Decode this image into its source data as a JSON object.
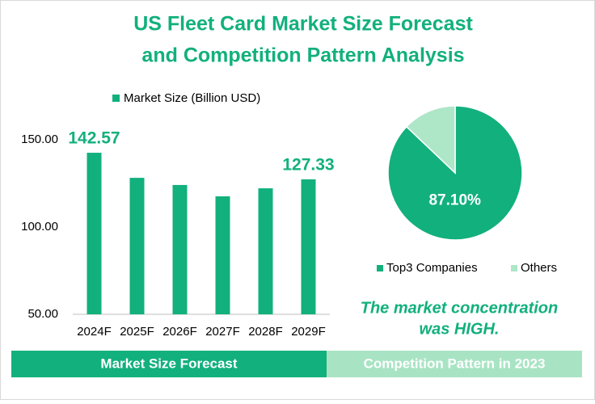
{
  "title": [
    "US Fleet Card Market Size Forecast",
    "and Competition Pattern Analysis"
  ],
  "chart_data": [
    {
      "type": "bar",
      "caption": "Market Size Forecast",
      "categories": [
        "2024F",
        "2025F",
        "2026F",
        "2027F",
        "2028F",
        "2029F"
      ],
      "series": [
        {
          "name": "Market Size (Billion USD)",
          "color": "#12b07c",
          "values": [
            142.57,
            128.2,
            124.1,
            117.6,
            122.2,
            127.33
          ],
          "value_labels": [
            "142.57",
            null,
            null,
            null,
            null,
            "127.33"
          ]
        }
      ],
      "ylim": [
        50,
        150
      ],
      "yticks": [
        {
          "value": 50,
          "label": "50.00"
        },
        {
          "value": 100,
          "label": "100.00"
        },
        {
          "value": 150,
          "label": "150.00"
        }
      ],
      "grid": false,
      "legend": "top"
    },
    {
      "type": "pie",
      "caption": "Competition Pattern in 2023",
      "categories": [
        "Top3 Companies",
        "Others"
      ],
      "values": [
        87.1,
        12.9
      ],
      "value_labels": [
        "87.10%",
        null
      ],
      "colors": [
        "#12b07c",
        "#aee6c8"
      ],
      "legend": "bottom",
      "annotation": [
        "The market concentration",
        "was HIGH."
      ]
    }
  ]
}
